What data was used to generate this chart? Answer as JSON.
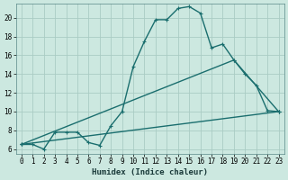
{
  "bg_color": "#cce8e0",
  "grid_color": "#aaccc4",
  "line_color": "#1a6e6e",
  "xlabel": "Humidex (Indice chaleur)",
  "xlim": [
    -0.5,
    23.5
  ],
  "ylim": [
    5.5,
    21.5
  ],
  "xticks": [
    0,
    1,
    2,
    3,
    4,
    5,
    6,
    7,
    8,
    9,
    10,
    11,
    12,
    13,
    14,
    15,
    16,
    17,
    18,
    19,
    20,
    21,
    22,
    23
  ],
  "yticks": [
    6,
    8,
    10,
    12,
    14,
    16,
    18,
    20
  ],
  "series1_x": [
    0,
    1,
    2,
    3,
    4,
    5,
    6,
    7,
    8,
    9,
    10,
    11,
    12,
    13,
    14,
    15,
    16,
    17,
    18,
    19,
    20,
    21,
    22,
    23
  ],
  "series1_y": [
    6.5,
    6.5,
    6.0,
    7.8,
    7.8,
    7.8,
    6.7,
    6.4,
    8.5,
    10.0,
    14.8,
    17.5,
    19.8,
    19.8,
    21.0,
    21.2,
    20.5,
    16.8,
    17.2,
    15.5,
    14.0,
    12.8,
    10.1,
    10.0
  ],
  "series2_x": [
    0,
    23
  ],
  "series2_y": [
    6.5,
    10.0
  ],
  "series3_x": [
    0,
    19,
    23
  ],
  "series3_y": [
    6.5,
    15.5,
    10.0
  ],
  "marker": "+",
  "markersize": 3,
  "linewidth": 1.0,
  "tick_fontsize": 5.5,
  "xlabel_fontsize": 6.5
}
